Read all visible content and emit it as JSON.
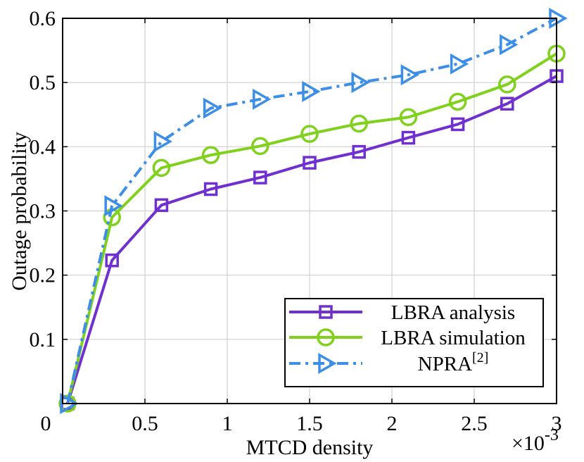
{
  "chart_data": {
    "type": "line",
    "title": "",
    "xlabel": "MTCD density",
    "ylabel": "Outage probability",
    "x_exponent_prefix": "×10",
    "x_exponent_power": "-3",
    "xlim": [
      0,
      3
    ],
    "ylim": [
      0,
      0.6
    ],
    "grid": true,
    "legend_position": "bottom-right",
    "x_ticks": [
      {
        "value": 0,
        "label": "0"
      },
      {
        "value": 0.5,
        "label": "0.5"
      },
      {
        "value": 1,
        "label": "1"
      },
      {
        "value": 1.5,
        "label": "1.5"
      },
      {
        "value": 2,
        "label": "2"
      },
      {
        "value": 2.5,
        "label": "2.5"
      },
      {
        "value": 3,
        "label": "3"
      }
    ],
    "y_ticks": [
      {
        "value": 0.1,
        "label": "0.1"
      },
      {
        "value": 0.2,
        "label": "0.2"
      },
      {
        "value": 0.3,
        "label": "0.3"
      },
      {
        "value": 0.4,
        "label": "0.4"
      },
      {
        "value": 0.5,
        "label": "0.5"
      },
      {
        "value": 0.6,
        "label": "0.6"
      }
    ],
    "x": [
      0.03,
      0.3,
      0.6,
      0.9,
      1.2,
      1.5,
      1.8,
      2.1,
      2.4,
      2.7,
      3.0
    ],
    "series": [
      {
        "name": "LBRA analysis",
        "color": "#7030d0",
        "marker": "square",
        "dash": "solid",
        "values": [
          0.0,
          0.223,
          0.309,
          0.334,
          0.352,
          0.375,
          0.392,
          0.414,
          0.435,
          0.467,
          0.51
        ]
      },
      {
        "name": "LBRA simulation",
        "color": "#7fd11c",
        "marker": "circle",
        "dash": "solid",
        "values": [
          0.0,
          0.29,
          0.367,
          0.387,
          0.401,
          0.42,
          0.436,
          0.446,
          0.47,
          0.497,
          0.545
        ]
      },
      {
        "name": "NPRA",
        "name_superscript": "[2]",
        "color": "#3c8ee6",
        "marker": "triangle-right",
        "dash": "dashdot",
        "values": [
          0.0,
          0.308,
          0.408,
          0.46,
          0.474,
          0.486,
          0.5,
          0.512,
          0.529,
          0.559,
          0.6
        ]
      }
    ]
  }
}
